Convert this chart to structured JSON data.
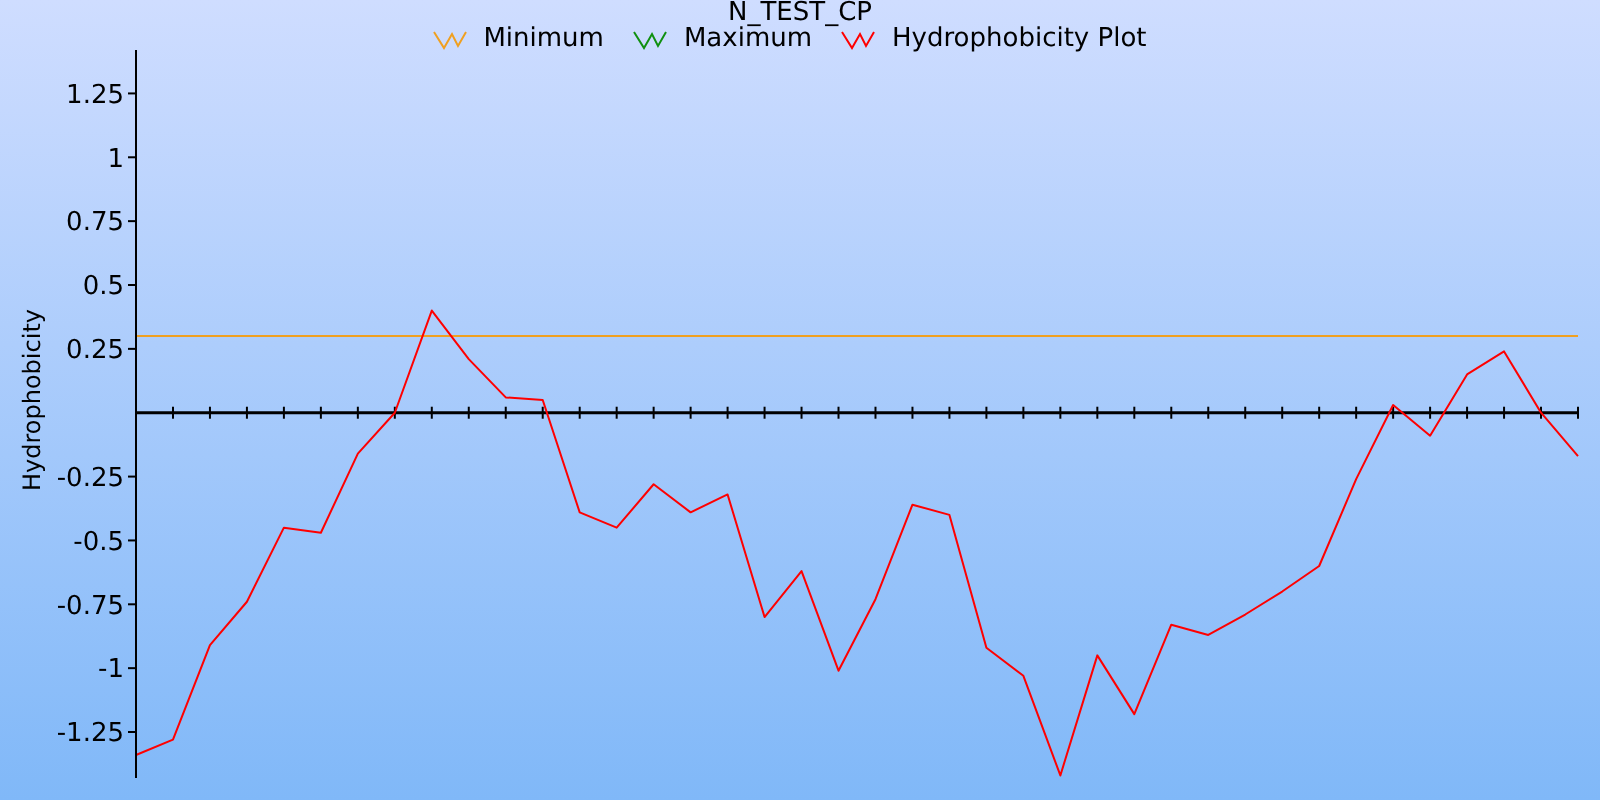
{
  "chart_data": {
    "type": "line",
    "title": "N_TEST_CP",
    "ylabel": "Hydrophobicity",
    "categories": [
      null,
      null,
      null,
      null,
      null,
      null,
      null,
      null,
      null,
      null,
      null,
      null,
      null,
      null,
      null,
      null,
      null,
      null,
      null,
      null,
      null,
      null,
      null,
      null,
      null,
      null,
      null,
      null,
      null,
      null,
      null,
      null,
      null,
      null,
      null,
      null,
      null,
      null,
      null,
      null
    ],
    "series": [
      {
        "name": "Minimum",
        "color": "#f0a020",
        "values": [
          0.3,
          0.3,
          0.3,
          0.3,
          0.3,
          0.3,
          0.3,
          0.3,
          0.3,
          0.3,
          0.3,
          0.3,
          0.3,
          0.3,
          0.3,
          0.3,
          0.3,
          0.3,
          0.3,
          0.3,
          0.3,
          0.3,
          0.3,
          0.3,
          0.3,
          0.3,
          0.3,
          0.3,
          0.3,
          0.3,
          0.3,
          0.3,
          0.3,
          0.3,
          0.3,
          0.3,
          0.3,
          0.3,
          0.3,
          0.3
        ]
      },
      {
        "name": "Maximum",
        "color": "#109010",
        "values": [
          null,
          null,
          null,
          null,
          null,
          null,
          null,
          null,
          null,
          null,
          null,
          null,
          null,
          null,
          null,
          null,
          null,
          null,
          null,
          null,
          null,
          null,
          null,
          null,
          null,
          null,
          null,
          null,
          null,
          null,
          null,
          null,
          null,
          null,
          null,
          null,
          null,
          null,
          null,
          null
        ]
      },
      {
        "name": "Hydrophobicity Plot",
        "color": "#ff0000",
        "values": [
          -1.34,
          -1.28,
          -0.91,
          -0.74,
          -0.45,
          -0.47,
          -0.16,
          0.0,
          0.4,
          0.21,
          0.06,
          0.05,
          -0.39,
          -0.45,
          -0.28,
          -0.39,
          -0.32,
          -0.8,
          -0.62,
          -1.01,
          -0.73,
          -0.36,
          -0.4,
          -0.92,
          -1.03,
          -1.42,
          -0.95,
          -1.18,
          -0.83,
          -0.87,
          -0.79,
          -0.7,
          -0.6,
          -0.26,
          0.03,
          -0.09,
          0.15,
          0.24,
          0.0,
          -0.17
        ]
      }
    ],
    "ylim": [
      -1.43,
      1.42
    ],
    "yticks": [
      {
        "value": -1.25,
        "label": "-1.25"
      },
      {
        "value": -1,
        "label": "-1"
      },
      {
        "value": -0.75,
        "label": "-0.75"
      },
      {
        "value": -0.5,
        "label": "-0.5"
      },
      {
        "value": -0.25,
        "label": "-0.25"
      },
      0.25,
      0.5,
      0.75,
      1,
      1.25
    ],
    "legend": "top",
    "marker": "none",
    "line_style": "solid",
    "tick_labels": "y"
  }
}
